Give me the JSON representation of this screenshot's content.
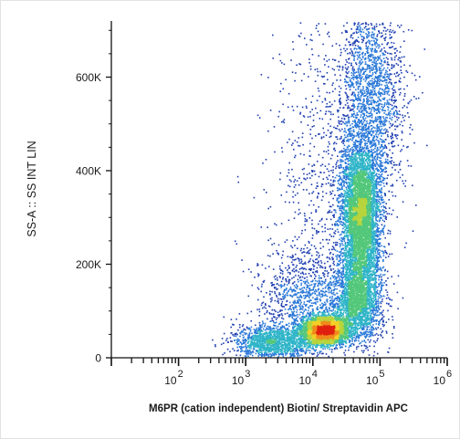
{
  "chart_data": {
    "type": "scatter",
    "subtype": "flow-cytometry-density-dot-plot",
    "xlabel": "M6PR (cation independent) Biotin/ Streptavidin APC",
    "ylabel": "SS-A :: SS INT LIN",
    "x_scale": "log",
    "xlim": [
      10,
      1000000
    ],
    "ylim": [
      0,
      720000
    ],
    "x_ticks": [
      {
        "base": "10",
        "exp": "2",
        "value": 100
      },
      {
        "base": "10",
        "exp": "3",
        "value": 1000
      },
      {
        "base": "10",
        "exp": "4",
        "value": 10000
      },
      {
        "base": "10",
        "exp": "5",
        "value": 100000
      },
      {
        "base": "10",
        "exp": "6",
        "value": 1000000
      }
    ],
    "y_ticks": [
      {
        "label": "0",
        "value": 0
      },
      {
        "label": "200K",
        "value": 200000
      },
      {
        "label": "400K",
        "value": 400000
      },
      {
        "label": "600K",
        "value": 600000
      }
    ],
    "grid": false,
    "legend": "none",
    "colormap": [
      "#1f3fb0",
      "#2a78d8",
      "#2fb5c8",
      "#53c77a",
      "#b7d43c",
      "#f3d028",
      "#f08a1c",
      "#e02010"
    ],
    "populations": [
      {
        "x_center": 15000,
        "y_center": 60000,
        "x_spread_decades": 0.17,
        "y_spread": 15000,
        "weight": 0.22
      },
      {
        "x_center": 50000,
        "y_center": 300000,
        "x_spread_decades": 0.15,
        "y_spread": 80000,
        "weight": 0.32
      },
      {
        "x_center": 45000,
        "y_center": 120000,
        "x_spread_decades": 0.18,
        "y_spread": 45000,
        "weight": 0.13
      },
      {
        "x_center": 2500,
        "y_center": 35000,
        "x_spread_decades": 0.3,
        "y_spread": 18000,
        "weight": 0.09
      },
      {
        "x_center": 70000,
        "y_center": 560000,
        "x_spread_decades": 0.25,
        "y_spread": 110000,
        "weight": 0.12
      },
      {
        "x_center": 15000,
        "y_center": 400000,
        "x_spread_decades": 0.45,
        "y_spread": 200000,
        "weight": 0.05
      },
      {
        "x_center": 8000,
        "y_center": 120000,
        "x_spread_decades": 0.35,
        "y_spread": 60000,
        "weight": 0.07
      }
    ]
  }
}
